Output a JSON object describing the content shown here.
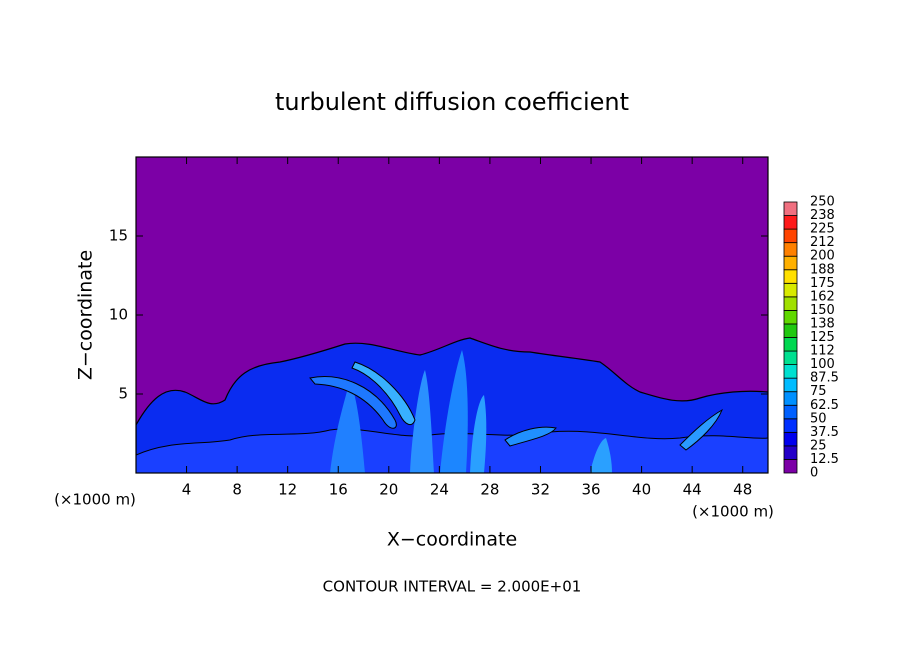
{
  "chart_data": {
    "type": "contour",
    "title": "turbulent diffusion coefficient",
    "x_label": "X−coordinate",
    "y_label": "Z−coordinate",
    "x_unit_labels": [
      "(×1000 m)",
      "(×1000 m)"
    ],
    "annotation": "CONTOUR INTERVAL = 2.000E+01",
    "xlim": [
      0,
      50
    ],
    "ylim": [
      0,
      20
    ],
    "xticks": [
      4,
      8,
      12,
      16,
      20,
      24,
      28,
      32,
      36,
      40,
      44,
      48
    ],
    "yticks": [
      5,
      10,
      15
    ],
    "colorbar": {
      "levels": [
        0,
        12.5,
        25,
        37.5,
        50,
        62.5,
        75,
        87.5,
        100,
        112,
        125,
        138,
        150,
        162,
        175,
        188,
        200,
        212,
        225,
        238,
        250
      ],
      "colors": [
        "#7c00a6",
        "#2400c8",
        "#0000ee",
        "#0030ff",
        "#0060ff",
        "#0090ff",
        "#00bcff",
        "#00e0d0",
        "#00e090",
        "#00d850",
        "#20c810",
        "#60d800",
        "#a0e000",
        "#d8ea00",
        "#ffe000",
        "#ffb000",
        "#ff8000",
        "#ff4400",
        "#ff1a1a",
        "#f07080"
      ]
    }
  }
}
